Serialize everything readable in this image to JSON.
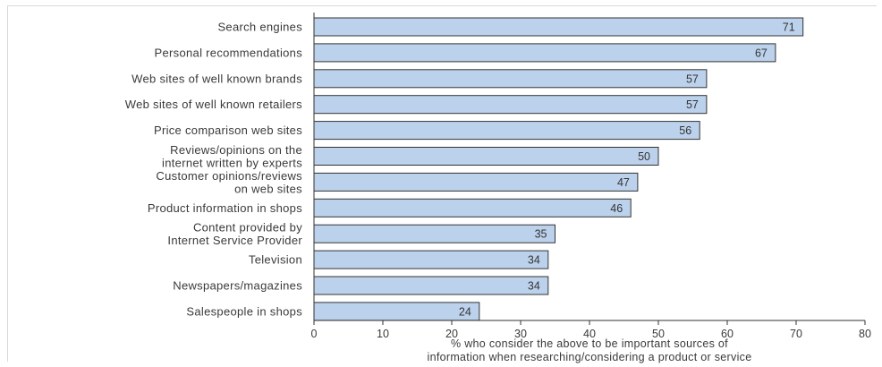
{
  "chart_data": {
    "type": "bar",
    "orientation": "horizontal",
    "categories": [
      [
        "Search engines"
      ],
      [
        "Personal recommendations"
      ],
      [
        "Web sites of well known brands"
      ],
      [
        "Web sites of well known retailers"
      ],
      [
        "Price comparison web sites"
      ],
      [
        "Reviews/opinions on the",
        "internet written by experts"
      ],
      [
        "Customer opinions/reviews",
        "on web sites"
      ],
      [
        "Product information in shops"
      ],
      [
        "Content provided by",
        "Internet Service Provider"
      ],
      [
        "Television"
      ],
      [
        "Newspapers/magazines"
      ],
      [
        "Salespeople in shops"
      ]
    ],
    "values": [
      71,
      67,
      57,
      57,
      56,
      50,
      47,
      46,
      35,
      34,
      34,
      24
    ],
    "xlim": [
      0,
      80
    ],
    "xticks": [
      0,
      10,
      20,
      30,
      40,
      50,
      60,
      70,
      80
    ],
    "xlabel": [
      "% who consider the above to be important sources of",
      "information when researching/considering a product or service"
    ],
    "title": "",
    "ylabel": "",
    "bar_color": "#bcd2ec",
    "bar_edge_color": "#333333",
    "grid": false
  }
}
